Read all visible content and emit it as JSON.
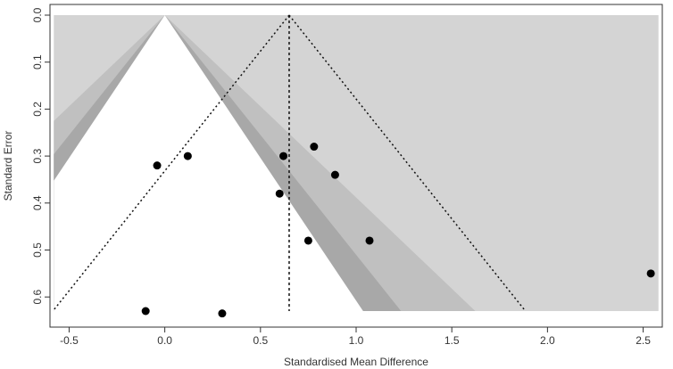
{
  "chart_data": {
    "type": "scatter",
    "subtype": "contour-enhanced funnel plot",
    "title": "",
    "xlabel": "Standardised Mean Difference",
    "ylabel": "Standard Error",
    "xlim": [
      -0.6,
      2.6
    ],
    "ylim": [
      0.63,
      0.0
    ],
    "y_reversed": true,
    "x_ticks": [
      "-0.5",
      "0.0",
      "0.5",
      "1.0",
      "1.5",
      "2.0",
      "2.5"
    ],
    "y_ticks": [
      "0.0",
      "0.1",
      "0.2",
      "0.3",
      "0.4",
      "0.5",
      "0.6"
    ],
    "contour_center": 0.0,
    "summary_estimate": 0.65,
    "contour_z_values": [
      1.645,
      1.96,
      2.576
    ],
    "points": [
      {
        "x": -0.04,
        "y": 0.32
      },
      {
        "x": 0.12,
        "y": 0.3
      },
      {
        "x": 0.62,
        "y": 0.3
      },
      {
        "x": 0.78,
        "y": 0.28
      },
      {
        "x": 0.89,
        "y": 0.34
      },
      {
        "x": 0.6,
        "y": 0.38
      },
      {
        "x": 0.75,
        "y": 0.48
      },
      {
        "x": 1.07,
        "y": 0.48
      },
      {
        "x": 2.54,
        "y": 0.55
      },
      {
        "x": -0.1,
        "y": 0.63
      },
      {
        "x": 0.3,
        "y": 0.635
      }
    ],
    "colors": {
      "region_outer": "#d4d4d4",
      "region_mid": "#c0c0c0",
      "region_inner": "#a8a8a8",
      "region_center": "#ffffff",
      "points": "#000000",
      "reference_lines": "#111111"
    },
    "grid": false,
    "legend": "none"
  }
}
